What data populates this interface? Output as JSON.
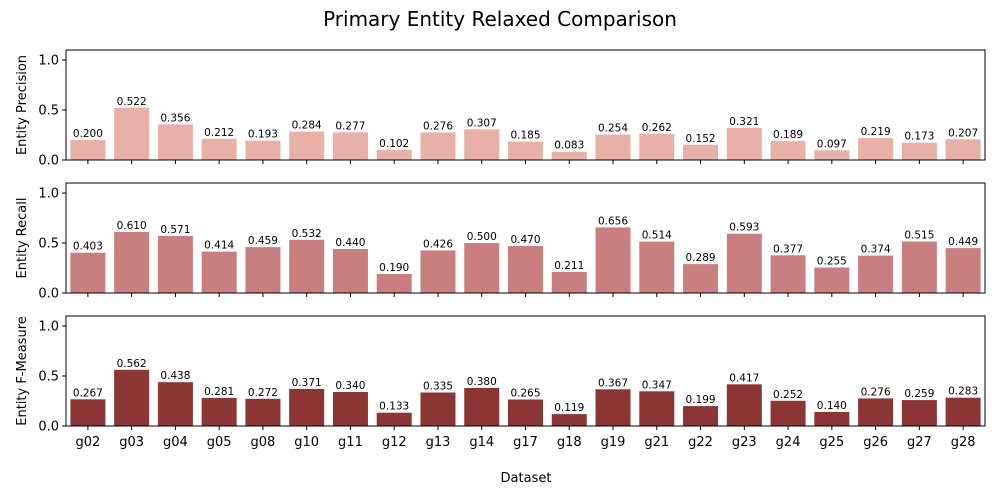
{
  "chart_data": {
    "type": "bar",
    "title": "Primary Entity Relaxed Comparison",
    "xlabel": "Dataset",
    "categories": [
      "g02",
      "g03",
      "g04",
      "g05",
      "g08",
      "g10",
      "g11",
      "g12",
      "g13",
      "g14",
      "g17",
      "g18",
      "g19",
      "g21",
      "g22",
      "g23",
      "g24",
      "g25",
      "g26",
      "g27",
      "g28"
    ],
    "ylim": [
      0,
      1.1
    ],
    "yticks": [
      "0.0",
      "0.5",
      "1.0"
    ],
    "grid": false,
    "panels": [
      {
        "ylabel": "Entity Precision",
        "color": "#e8b0a6",
        "values": [
          0.2,
          0.522,
          0.356,
          0.212,
          0.193,
          0.284,
          0.277,
          0.102,
          0.276,
          0.307,
          0.185,
          0.083,
          0.254,
          0.262,
          0.152,
          0.321,
          0.189,
          0.097,
          0.219,
          0.173,
          0.207
        ],
        "labels": [
          "0.200",
          "0.522",
          "0.356",
          "0.212",
          "0.193",
          "0.284",
          "0.277",
          "0.102",
          "0.276",
          "0.307",
          "0.185",
          "0.083",
          "0.254",
          "0.262",
          "0.152",
          "0.321",
          "0.189",
          "0.097",
          "0.219",
          "0.173",
          "0.207"
        ]
      },
      {
        "ylabel": "Entity Recall",
        "color": "#c97f7f",
        "values": [
          0.403,
          0.61,
          0.571,
          0.414,
          0.459,
          0.532,
          0.44,
          0.19,
          0.426,
          0.5,
          0.47,
          0.211,
          0.656,
          0.514,
          0.289,
          0.593,
          0.377,
          0.255,
          0.374,
          0.515,
          0.449
        ],
        "labels": [
          "0.403",
          "0.610",
          "0.571",
          "0.414",
          "0.459",
          "0.532",
          "0.440",
          "0.190",
          "0.426",
          "0.500",
          "0.470",
          "0.211",
          "0.656",
          "0.514",
          "0.289",
          "0.593",
          "0.377",
          "0.255",
          "0.374",
          "0.515",
          "0.449"
        ]
      },
      {
        "ylabel": "Entity F-Measure",
        "color": "#8b3535",
        "values": [
          0.267,
          0.562,
          0.438,
          0.281,
          0.272,
          0.371,
          0.34,
          0.133,
          0.335,
          0.38,
          0.265,
          0.119,
          0.367,
          0.347,
          0.199,
          0.417,
          0.252,
          0.14,
          0.276,
          0.259,
          0.283
        ],
        "labels": [
          "0.267",
          "0.562",
          "0.438",
          "0.281",
          "0.272",
          "0.371",
          "0.340",
          "0.133",
          "0.335",
          "0.380",
          "0.265",
          "0.119",
          "0.367",
          "0.347",
          "0.199",
          "0.417",
          "0.252",
          "0.140",
          "0.276",
          "0.259",
          "0.283"
        ]
      }
    ]
  }
}
